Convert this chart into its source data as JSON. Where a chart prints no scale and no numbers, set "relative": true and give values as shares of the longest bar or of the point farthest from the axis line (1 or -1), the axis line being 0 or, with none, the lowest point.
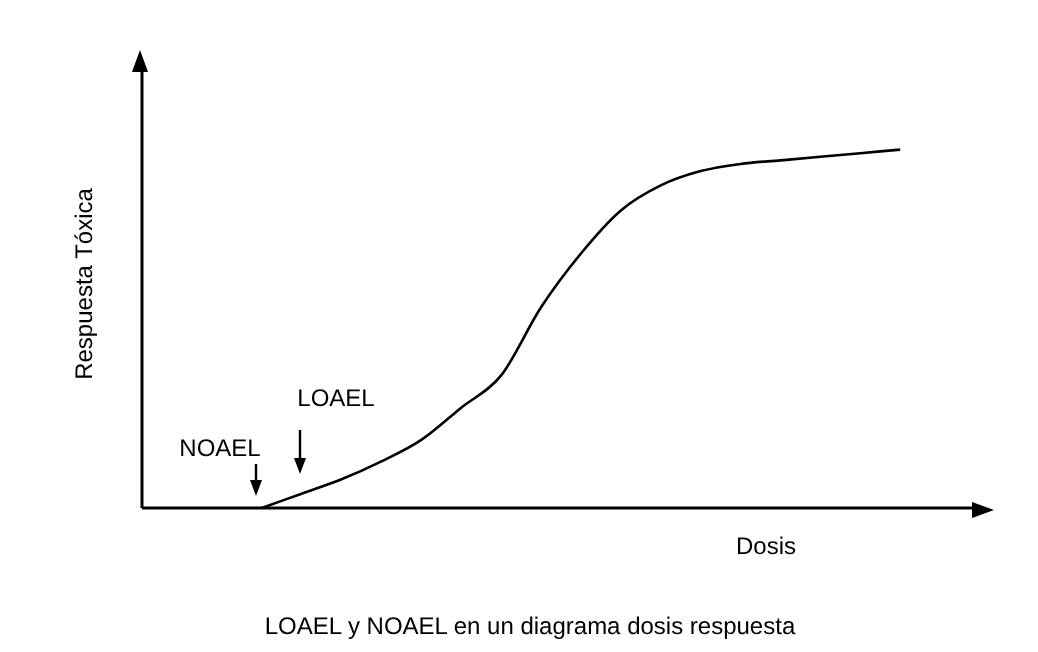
{
  "chart_data": {
    "type": "line",
    "relative": true,
    "xlabel": "Dosis",
    "ylabel": "Respuesta Tóxica",
    "categories": [
      null,
      null,
      null,
      null,
      null,
      null,
      null,
      null,
      null,
      null,
      null,
      null,
      null,
      null,
      null,
      null,
      null,
      null,
      null,
      null,
      null,
      null
    ],
    "series": [
      {
        "color": "#000000",
        "values": [
          null,
          null,
          null,
          0,
          0.04,
          0.08,
          0.13,
          0.19,
          0.28,
          0.37,
          0.56,
          0.71,
          0.83,
          0.9,
          0.94,
          0.96,
          0.97,
          0.98,
          0.99,
          1,
          null,
          null
        ]
      }
    ],
    "annotations": [
      "NOAEL",
      "LOAEL",
      "LOAEL y NOAEL en un diagrama dosis respuesta"
    ],
    "marker": "none",
    "line_style": "solid",
    "grid": false,
    "legend": false
  }
}
